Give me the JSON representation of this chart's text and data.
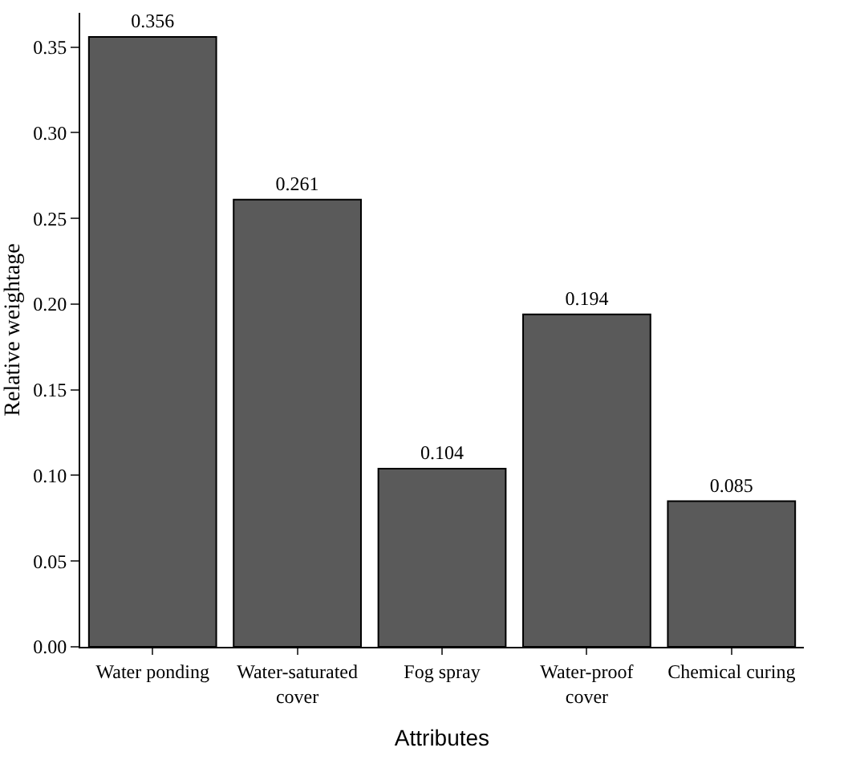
{
  "chart_data": {
    "type": "bar",
    "categories": [
      "Water ponding",
      "Water-saturated cover",
      "Fog spray",
      "Water-proof cover",
      "Chemical curing"
    ],
    "values": [
      0.356,
      0.261,
      0.104,
      0.194,
      0.085
    ],
    "color": "#5a5a5a",
    "xlabel": "Attributes",
    "ylabel": "Relative weightage",
    "ylim": [
      0,
      0.37
    ],
    "yticks": [
      {
        "value": 0,
        "label": "0.00"
      },
      0.05,
      {
        "value": 0.1,
        "label": "0.10"
      },
      0.15,
      {
        "value": 0.2,
        "label": "0.20"
      },
      0.25,
      {
        "value": 0.3,
        "label": "0.30"
      },
      0.35
    ],
    "data_labels": true,
    "grid": false,
    "legend": false
  }
}
